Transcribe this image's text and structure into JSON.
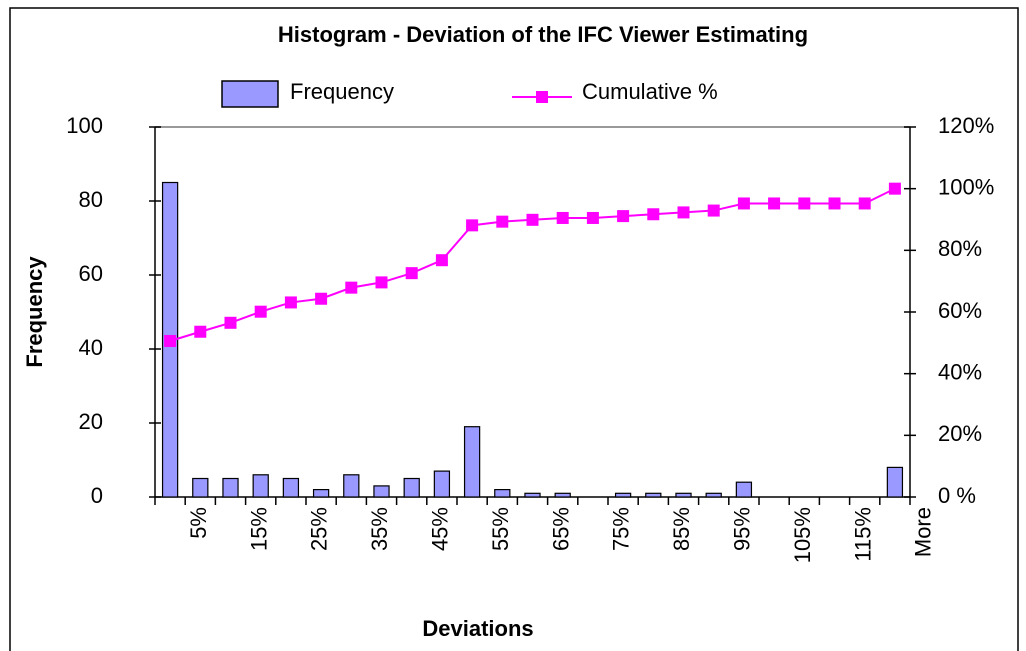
{
  "chart_data": {
    "type": "bar",
    "title": "Histogram - Deviation of the IFC Viewer Estimating",
    "x_label": "Deviations",
    "y_label": "Frequency",
    "categories": [
      "5%",
      null,
      "15%",
      null,
      "25%",
      null,
      "35%",
      null,
      "45%",
      null,
      "55%",
      null,
      "65%",
      null,
      "75%",
      null,
      "85%",
      null,
      "95%",
      null,
      "105%",
      null,
      "115%",
      null,
      "More"
    ],
    "series": [
      {
        "name": "Frequency",
        "type": "bar",
        "color": "#9999ff",
        "values": [
          85,
          5,
          5,
          6,
          5,
          2,
          6,
          3,
          5,
          7,
          19,
          2,
          1,
          1,
          0,
          1,
          1,
          1,
          1,
          4,
          0,
          0,
          0,
          0,
          8
        ]
      },
      {
        "name": "Cumulative %",
        "type": "line",
        "axis": "y2",
        "color": "#ff00ff",
        "values": [
          50.6,
          53.6,
          56.5,
          60.1,
          63.1,
          64.3,
          67.9,
          69.6,
          72.6,
          76.8,
          88.1,
          89.3,
          89.9,
          90.5,
          90.5,
          91.1,
          91.7,
          92.3,
          92.9,
          95.2,
          95.2,
          95.2,
          95.2,
          95.2,
          100
        ]
      }
    ],
    "ylim": [
      0,
      100
    ],
    "yticks": [
      0,
      20,
      40,
      60,
      80,
      100
    ],
    "y2lim": [
      0,
      120
    ],
    "y2ticks": [
      {
        "value": 0,
        "label": "0 %"
      },
      {
        "value": 20,
        "label": "20%"
      },
      {
        "value": 40,
        "label": "40%"
      },
      {
        "value": 60,
        "label": "60%"
      },
      {
        "value": 80,
        "label": "80%"
      },
      {
        "value": 100,
        "label": "100%"
      },
      {
        "value": 120,
        "label": "120%"
      }
    ],
    "legend": "top"
  }
}
